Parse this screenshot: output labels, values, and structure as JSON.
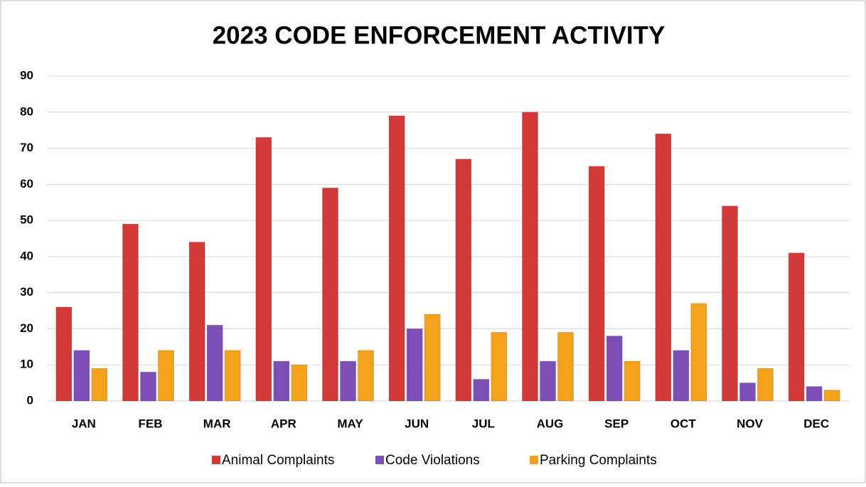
{
  "chart_data": {
    "type": "bar",
    "title": "2023 CODE ENFORCEMENT ACTIVITY",
    "categories": [
      "JAN",
      "FEB",
      "MAR",
      "APR",
      "MAY",
      "JUN",
      "JUL",
      "AUG",
      "SEP",
      "OCT",
      "NOV",
      "DEC"
    ],
    "series": [
      {
        "name": "Animal Complaints",
        "color": "#d23a3a",
        "values": [
          26,
          49,
          44,
          73,
          59,
          79,
          67,
          80,
          65,
          74,
          54,
          41
        ]
      },
      {
        "name": "Code Violations",
        "color": "#7b4fb6",
        "values": [
          14,
          8,
          21,
          11,
          11,
          20,
          6,
          11,
          18,
          14,
          5,
          4
        ]
      },
      {
        "name": "Parking Complaints",
        "color": "#f4a11c",
        "values": [
          9,
          14,
          14,
          10,
          14,
          24,
          19,
          19,
          11,
          27,
          9,
          3
        ]
      }
    ],
    "ylim": [
      0,
      90
    ],
    "yticks": [
      0,
      10,
      20,
      30,
      40,
      50,
      60,
      70,
      80,
      90
    ],
    "grid": true,
    "legend": "bottom"
  }
}
